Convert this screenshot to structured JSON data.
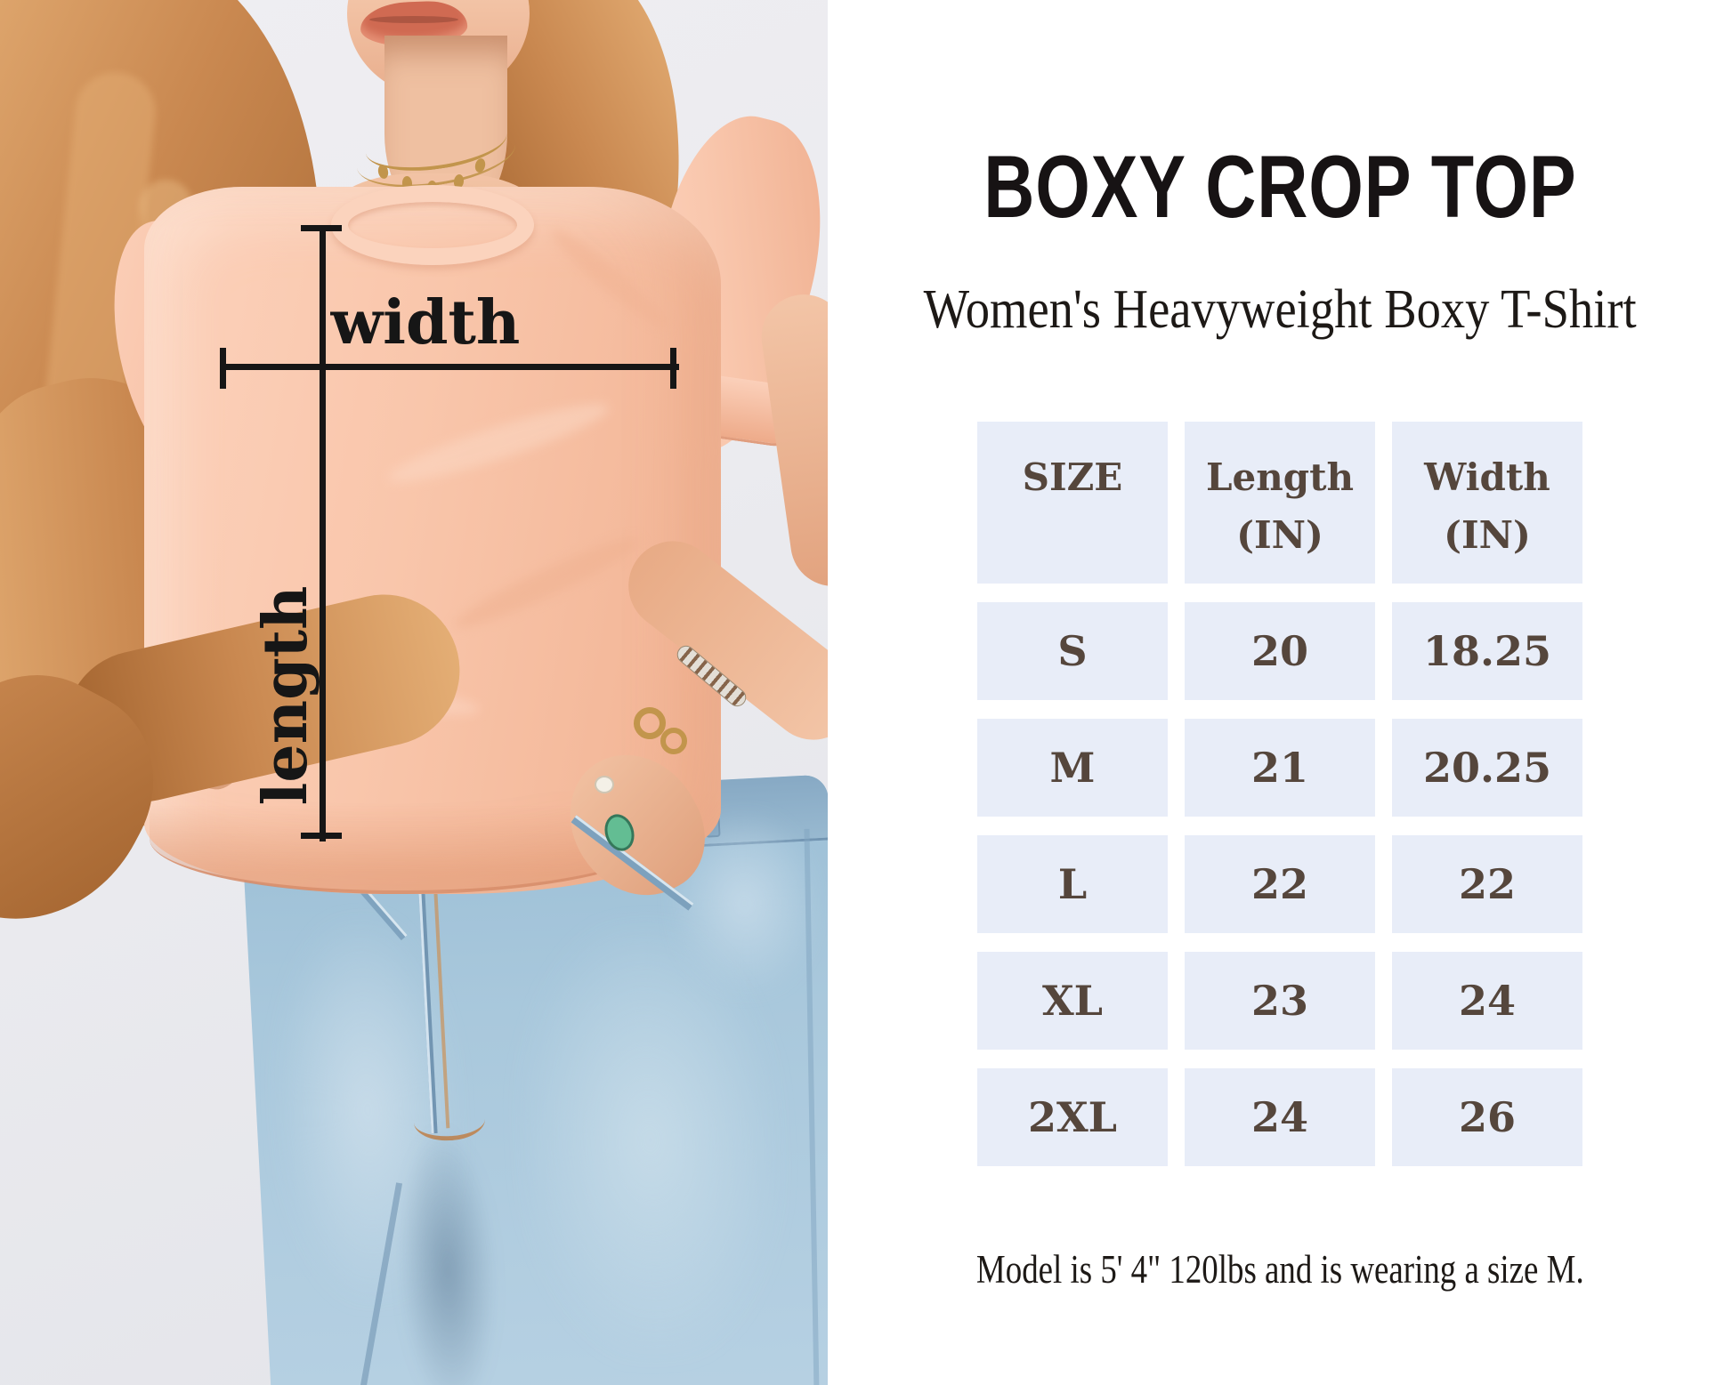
{
  "panel": {
    "title": "BOXY CROP TOP",
    "subtitle": "Women's Heavyweight Boxy T-Shirt",
    "footnote": "Model is 5' 4\" 120lbs and is wearing a size M."
  },
  "photo": {
    "width_label": "width",
    "length_label": "length"
  },
  "table": {
    "headers": [
      {
        "line1": "SIZE",
        "line2": ""
      },
      {
        "line1": "Length",
        "line2": "(IN)"
      },
      {
        "line1": "Width",
        "line2": "(IN)"
      }
    ],
    "rows": [
      {
        "size": "S",
        "length": "20",
        "width": "18.25"
      },
      {
        "size": "M",
        "length": "21",
        "width": "20.25"
      },
      {
        "size": "L",
        "length": "22",
        "width": "22"
      },
      {
        "size": "XL",
        "length": "23",
        "width": "24"
      },
      {
        "size": "2XL",
        "length": "24",
        "width": "26"
      }
    ]
  },
  "colors": {
    "cell_bg": "#E8EDF8",
    "table_text": "#55463C",
    "heading_text": "#171314",
    "body_text": "#1D1916",
    "annotation": "#161616",
    "photo_bg": "#EBEBEF",
    "shirt": "#F8C5AA",
    "shirt_light": "#FBD3BD",
    "shirt_shadow": "#EFAE90",
    "skin": "#EFC0A1",
    "skin_shadow": "#DC9F7D",
    "hair": "#C98850",
    "hair_light": "#E4AE75",
    "hair_dark": "#A3642F",
    "jeans": "#A5C4DA",
    "jeans_light": "#C6DAE8",
    "jeans_dark": "#7FA3BF",
    "jeans_seam": "#6B8FAC",
    "gold": "#C2954C",
    "lips": "#D06A52",
    "turquoise": "#63BD93"
  }
}
